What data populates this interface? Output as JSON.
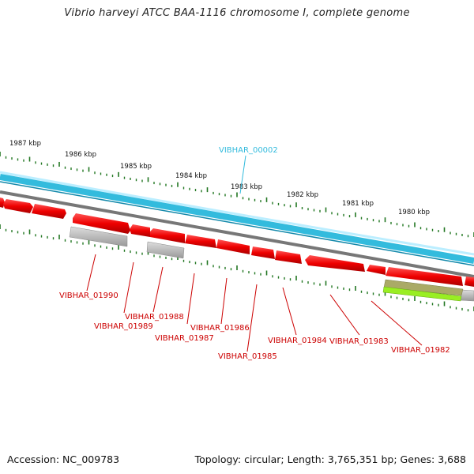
{
  "title": "Vibrio harveyi ATCC BAA-1116 chromosome I, complete genome",
  "footer": {
    "accession": "Accession: NC_009783",
    "topology": "Topology: circular; Length: 3,765,351 bp; Genes: 3,688"
  },
  "ruler": {
    "labels": [
      "1987 kbp",
      "1986 kbp",
      "1985 kbp",
      "1984 kbp",
      "1983 kbp",
      "1982 kbp",
      "1981 kbp",
      "1980 kbp"
    ]
  },
  "genes": {
    "top_strand": [
      "VIBHAR_00002"
    ],
    "bottom_strand": [
      "VIBHAR_01990",
      "VIBHAR_01989",
      "VIBHAR_01988",
      "VIBHAR_01987",
      "VIBHAR_01986",
      "VIBHAR_01985",
      "VIBHAR_01984",
      "VIBHAR_01983",
      "VIBHAR_01982"
    ]
  },
  "colors": {
    "cds": "#ee0000",
    "backbone": "#33bbdd",
    "gene_gray": "#aaaaaa",
    "ruler_ticks": "#227722",
    "rna_olive": "#aaaa66",
    "rna_green": "#99ee22",
    "label_red": "#cc0000",
    "label_blue": "#33bbdd"
  }
}
